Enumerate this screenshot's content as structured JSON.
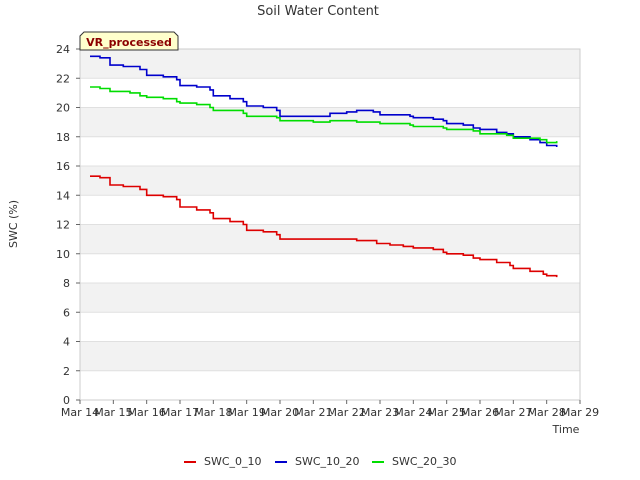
{
  "chart_data": {
    "type": "line",
    "title": "Soil Water Content",
    "xlabel": "Time",
    "ylabel": "SWC (%)",
    "badge": "VR_processed",
    "x_ticks": [
      "Mar 14",
      "Mar 15",
      "Mar 16",
      "Mar 17",
      "Mar 18",
      "Mar 19",
      "Mar 20",
      "Mar 21",
      "Mar 22",
      "Mar 23",
      "Mar 24",
      "Mar 25",
      "Mar 26",
      "Mar 27",
      "Mar 28",
      "Mar 29"
    ],
    "y_ticks": [
      0,
      2,
      4,
      6,
      8,
      10,
      12,
      14,
      16,
      18,
      20,
      22,
      24
    ],
    "xlim": [
      "Mar 14",
      "Mar 29"
    ],
    "ylim": [
      0,
      24
    ],
    "grid": "horizontal bands",
    "legend_position": "bottom",
    "series": [
      {
        "name": "SWC_0_10",
        "color": "#dd0000",
        "points": [
          [
            0.3,
            15.3
          ],
          [
            0.6,
            15.2
          ],
          [
            0.9,
            14.7
          ],
          [
            1.3,
            14.6
          ],
          [
            1.8,
            14.4
          ],
          [
            2.0,
            14.0
          ],
          [
            2.5,
            13.9
          ],
          [
            2.9,
            13.7
          ],
          [
            3.0,
            13.2
          ],
          [
            3.5,
            13.0
          ],
          [
            3.9,
            12.8
          ],
          [
            4.0,
            12.4
          ],
          [
            4.5,
            12.2
          ],
          [
            4.9,
            12.0
          ],
          [
            5.0,
            11.6
          ],
          [
            5.5,
            11.5
          ],
          [
            5.9,
            11.3
          ],
          [
            6.0,
            11.0
          ],
          [
            7.0,
            11.0
          ],
          [
            8.0,
            11.0
          ],
          [
            8.3,
            10.9
          ],
          [
            8.9,
            10.7
          ],
          [
            9.3,
            10.6
          ],
          [
            9.7,
            10.5
          ],
          [
            10.0,
            10.4
          ],
          [
            10.6,
            10.3
          ],
          [
            10.9,
            10.1
          ],
          [
            11.0,
            10.0
          ],
          [
            11.5,
            9.9
          ],
          [
            11.8,
            9.7
          ],
          [
            12.0,
            9.6
          ],
          [
            12.5,
            9.4
          ],
          [
            12.9,
            9.2
          ],
          [
            13.0,
            9.0
          ],
          [
            13.5,
            8.8
          ],
          [
            13.9,
            8.6
          ],
          [
            14.0,
            8.5
          ],
          [
            14.3,
            8.4
          ]
        ]
      },
      {
        "name": "SWC_10_20",
        "color": "#0000cc",
        "points": [
          [
            0.3,
            23.5
          ],
          [
            0.6,
            23.4
          ],
          [
            0.9,
            22.9
          ],
          [
            1.3,
            22.8
          ],
          [
            1.8,
            22.6
          ],
          [
            2.0,
            22.2
          ],
          [
            2.5,
            22.1
          ],
          [
            2.9,
            21.9
          ],
          [
            3.0,
            21.5
          ],
          [
            3.5,
            21.4
          ],
          [
            3.9,
            21.2
          ],
          [
            4.0,
            20.8
          ],
          [
            4.5,
            20.6
          ],
          [
            4.9,
            20.4
          ],
          [
            5.0,
            20.1
          ],
          [
            5.5,
            20.0
          ],
          [
            5.9,
            19.8
          ],
          [
            6.0,
            19.4
          ],
          [
            7.0,
            19.4
          ],
          [
            7.5,
            19.6
          ],
          [
            8.0,
            19.7
          ],
          [
            8.3,
            19.8
          ],
          [
            8.8,
            19.7
          ],
          [
            9.0,
            19.5
          ],
          [
            9.5,
            19.5
          ],
          [
            9.9,
            19.4
          ],
          [
            10.0,
            19.3
          ],
          [
            10.6,
            19.2
          ],
          [
            10.9,
            19.1
          ],
          [
            11.0,
            18.9
          ],
          [
            11.5,
            18.8
          ],
          [
            11.8,
            18.6
          ],
          [
            12.0,
            18.5
          ],
          [
            12.5,
            18.3
          ],
          [
            12.8,
            18.2
          ],
          [
            13.0,
            18.0
          ],
          [
            13.5,
            17.8
          ],
          [
            13.8,
            17.6
          ],
          [
            14.0,
            17.4
          ],
          [
            14.3,
            17.3
          ]
        ]
      },
      {
        "name": "SWC_20_30",
        "color": "#00dd00",
        "points": [
          [
            0.3,
            21.4
          ],
          [
            0.6,
            21.3
          ],
          [
            0.9,
            21.1
          ],
          [
            1.5,
            21.0
          ],
          [
            1.8,
            20.8
          ],
          [
            2.0,
            20.7
          ],
          [
            2.5,
            20.6
          ],
          [
            2.9,
            20.4
          ],
          [
            3.0,
            20.3
          ],
          [
            3.5,
            20.2
          ],
          [
            3.9,
            20.0
          ],
          [
            4.0,
            19.8
          ],
          [
            4.5,
            19.8
          ],
          [
            4.9,
            19.6
          ],
          [
            5.0,
            19.4
          ],
          [
            5.5,
            19.4
          ],
          [
            5.9,
            19.3
          ],
          [
            6.0,
            19.1
          ],
          [
            6.6,
            19.1
          ],
          [
            7.0,
            19.0
          ],
          [
            7.5,
            19.1
          ],
          [
            8.0,
            19.1
          ],
          [
            8.3,
            19.0
          ],
          [
            8.7,
            19.0
          ],
          [
            9.0,
            18.9
          ],
          [
            9.5,
            18.9
          ],
          [
            9.9,
            18.8
          ],
          [
            10.0,
            18.7
          ],
          [
            10.5,
            18.7
          ],
          [
            10.9,
            18.6
          ],
          [
            11.0,
            18.5
          ],
          [
            11.5,
            18.5
          ],
          [
            11.8,
            18.4
          ],
          [
            12.0,
            18.2
          ],
          [
            12.8,
            18.1
          ],
          [
            13.0,
            17.9
          ],
          [
            13.5,
            17.9
          ],
          [
            13.8,
            17.8
          ],
          [
            14.0,
            17.6
          ],
          [
            14.3,
            17.7
          ]
        ]
      }
    ]
  }
}
